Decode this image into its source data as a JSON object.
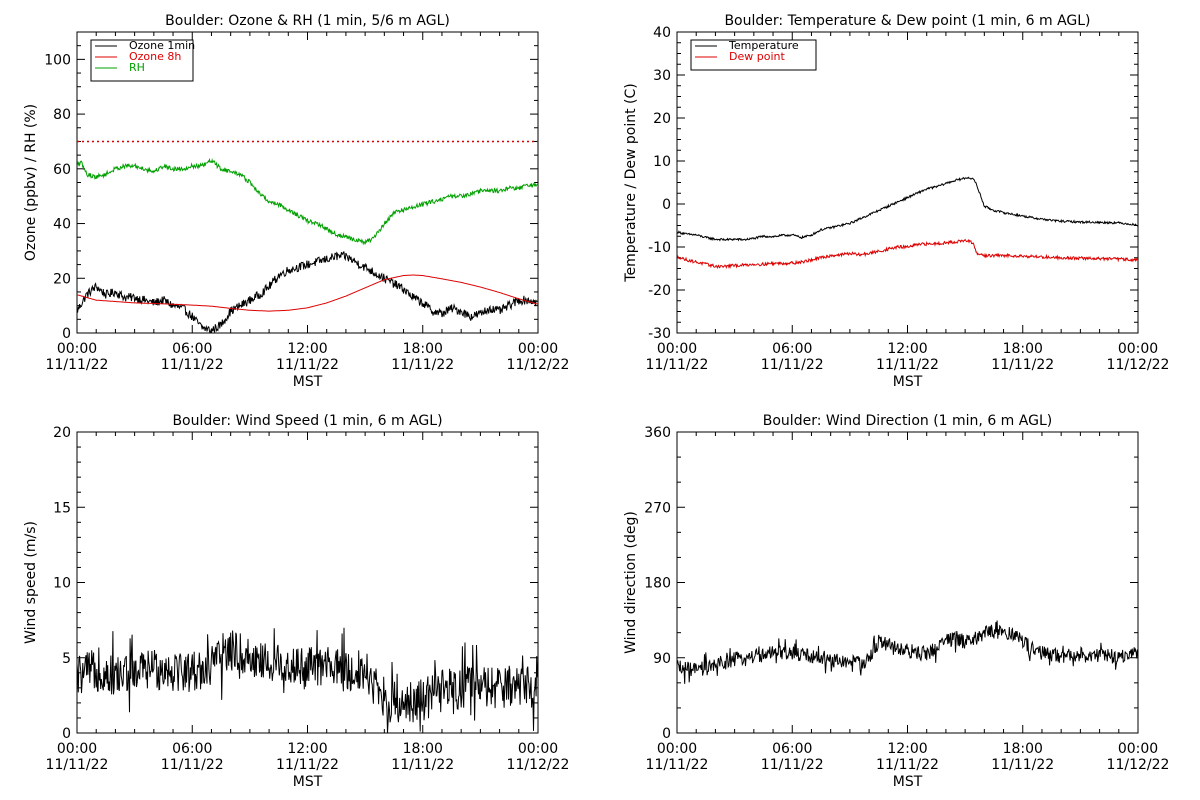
{
  "colors": {
    "black": "#000000",
    "red": "#dd0000",
    "green": "#00a000"
  },
  "xaxis": {
    "label": "MST",
    "ticks": [
      {
        "hour": 0,
        "time": "00:00",
        "date": "11/11/22"
      },
      {
        "hour": 6,
        "time": "06:00",
        "date": "11/11/22"
      },
      {
        "hour": 12,
        "time": "12:00",
        "date": "11/11/22"
      },
      {
        "hour": 18,
        "time": "18:00",
        "date": "11/11/22"
      },
      {
        "hour": 24,
        "time": "00:00",
        "date": "11/12/22"
      }
    ]
  },
  "chart_data": [
    {
      "type": "line",
      "title": "Boulder: Ozone & RH (1 min, 5/6 m AGL)",
      "ylabel": "Ozone (ppbv) / RH (%)",
      "xlabel": "MST",
      "xlim": [
        0,
        24
      ],
      "ylim": [
        0,
        110
      ],
      "yticks": [
        0,
        20,
        40,
        60,
        80,
        100
      ],
      "legend": "top-left",
      "reference_line": {
        "y": 70,
        "style": "dotted",
        "color": "#dd0000"
      },
      "series": [
        {
          "name": "Ozone 1min",
          "color": "#000000",
          "noise": 1.6,
          "x": [
            0,
            0.5,
            1,
            1.5,
            2,
            2.5,
            3,
            3.5,
            4,
            4.5,
            5,
            5.5,
            6,
            6.5,
            7,
            7.5,
            8,
            8.5,
            9,
            9.5,
            10,
            10.5,
            11,
            11.5,
            12,
            12.5,
            13,
            13.5,
            14,
            14.5,
            15,
            15.5,
            16,
            16.5,
            17,
            17.5,
            18,
            18.5,
            19,
            19.5,
            20,
            20.5,
            21,
            21.5,
            22,
            22.5,
            23,
            23.5,
            24
          ],
          "y": [
            8,
            14,
            17,
            14,
            15,
            13,
            13,
            12,
            11,
            12,
            10,
            9,
            6,
            2,
            1,
            3,
            8,
            10,
            12,
            14,
            17,
            21,
            23,
            24,
            25,
            26,
            27,
            28,
            28,
            26,
            24,
            22,
            20,
            18,
            16,
            13,
            11,
            8,
            7,
            9,
            8,
            6,
            7,
            9,
            8,
            10,
            12,
            12,
            11
          ]
        },
        {
          "name": "Ozone 8h",
          "color": "#dd0000",
          "noise": 0,
          "x": [
            0,
            0.5,
            1,
            2,
            3,
            4,
            5,
            6,
            7,
            8,
            9,
            10,
            11,
            12,
            13,
            14,
            15,
            16,
            17,
            17.5,
            18,
            19,
            20,
            21,
            22,
            23,
            24
          ],
          "y": [
            14,
            13,
            12,
            11.5,
            11,
            10.8,
            10.5,
            10.2,
            9.8,
            9,
            8.3,
            8,
            8.3,
            9.2,
            11,
            13.5,
            16.5,
            19.5,
            21,
            21.2,
            21,
            19.8,
            18.5,
            16.8,
            14.8,
            12.5,
            10.5
          ]
        },
        {
          "name": "RH",
          "color": "#00a000",
          "noise": 0.8,
          "x": [
            0,
            0.25,
            0.5,
            1,
            1.5,
            2,
            2.5,
            3,
            3.5,
            4,
            4.5,
            5,
            5.5,
            6,
            6.5,
            7,
            7.5,
            8,
            8.5,
            9,
            9.5,
            10,
            10.5,
            11,
            11.5,
            12,
            12.5,
            13,
            13.5,
            14,
            14.5,
            15,
            15.5,
            16,
            16.5,
            17,
            17.5,
            18,
            18.5,
            19,
            19.5,
            20,
            20.5,
            21,
            21.5,
            22,
            22.5,
            23,
            23.5,
            24
          ],
          "y": [
            62,
            62,
            58,
            57,
            58,
            60,
            61,
            61,
            60,
            59,
            61,
            60,
            60,
            61,
            61,
            63,
            60,
            59,
            58,
            55,
            51,
            48,
            47,
            45,
            43,
            41,
            40,
            38,
            36,
            35,
            34,
            33,
            35,
            40,
            44,
            45,
            46,
            47,
            48,
            49,
            50,
            50,
            51,
            52,
            52,
            52,
            53,
            53,
            54,
            54
          ]
        }
      ]
    },
    {
      "type": "line",
      "title": "Boulder: Temperature & Dew point (1 min, 6 m AGL)",
      "ylabel": "Temperature / Dew point (C)",
      "xlabel": "MST",
      "xlim": [
        0,
        24
      ],
      "ylim": [
        -30,
        40
      ],
      "yticks": [
        -30,
        -20,
        -10,
        0,
        10,
        20,
        30,
        40
      ],
      "legend": "top-left",
      "series": [
        {
          "name": "Temperature",
          "color": "#000000",
          "noise": 0.25,
          "x": [
            0,
            0.5,
            1,
            1.5,
            2,
            2.5,
            3,
            3.5,
            4,
            4.5,
            5,
            5.5,
            6,
            6.5,
            7,
            7.5,
            8,
            8.5,
            9,
            9.5,
            10,
            10.5,
            11,
            11.5,
            12,
            12.5,
            13,
            13.5,
            14,
            14.5,
            15,
            15.2,
            15.5,
            15.8,
            16,
            16.5,
            17,
            17.5,
            18,
            18.5,
            19,
            19.5,
            20,
            20.5,
            21,
            21.5,
            22,
            22.5,
            23,
            23.5,
            24
          ],
          "y": [
            -6.5,
            -7,
            -7.2,
            -7.8,
            -8.2,
            -8.3,
            -8.2,
            -8.3,
            -8,
            -7.5,
            -7.6,
            -7.3,
            -7.2,
            -7.8,
            -7.2,
            -6,
            -5.5,
            -5,
            -4.5,
            -3.5,
            -2.5,
            -1.5,
            -0.5,
            0.5,
            1.5,
            2.5,
            3.5,
            4,
            4.8,
            5.5,
            6,
            6.2,
            5.5,
            2,
            -0.5,
            -1.5,
            -2,
            -2.4,
            -2.8,
            -3.2,
            -3.5,
            -3.8,
            -4,
            -4.1,
            -4.2,
            -4.2,
            -4.3,
            -4.3,
            -4.4,
            -4.6,
            -5
          ]
        },
        {
          "name": "Dew point",
          "color": "#dd0000",
          "noise": 0.35,
          "x": [
            0,
            0.5,
            1,
            1.5,
            2,
            2.5,
            3,
            3.5,
            4,
            4.5,
            5,
            5.5,
            6,
            6.5,
            7,
            7.5,
            8,
            8.5,
            9,
            9.5,
            10,
            10.5,
            11,
            11.5,
            12,
            12.5,
            13,
            13.5,
            14,
            14.5,
            15,
            15.4,
            15.6,
            16,
            16.5,
            17,
            17.5,
            18,
            18.5,
            19,
            19.5,
            20,
            21,
            22,
            23,
            24
          ],
          "y": [
            -12.2,
            -13,
            -13.5,
            -14,
            -14.5,
            -14.5,
            -14.3,
            -14.2,
            -14,
            -14,
            -13.8,
            -13.8,
            -13.7,
            -13.5,
            -13,
            -12.5,
            -12,
            -11.8,
            -11.5,
            -11.8,
            -11.5,
            -11,
            -10.5,
            -10,
            -10,
            -9.5,
            -9.3,
            -9.2,
            -9,
            -8.8,
            -8.5,
            -9,
            -11.5,
            -12,
            -12,
            -12,
            -12,
            -12.1,
            -12.2,
            -12.3,
            -12.4,
            -12.5,
            -12.6,
            -12.7,
            -12.8,
            -13
          ]
        }
      ]
    },
    {
      "type": "line",
      "title": "Boulder: Wind Speed (1 min, 6 m AGL)",
      "ylabel": "Wind speed (m/s)",
      "xlabel": "MST",
      "xlim": [
        0,
        24
      ],
      "ylim": [
        0,
        20
      ],
      "yticks": [
        0,
        5,
        10,
        15,
        20
      ],
      "series": [
        {
          "name": "",
          "color": "#000000",
          "noise": 1.4,
          "spiky": true,
          "x": [
            0,
            1,
            2,
            3,
            4,
            5,
            6,
            7,
            8,
            9,
            10,
            11,
            12,
            13,
            14,
            15,
            15.5,
            16,
            17,
            18,
            19,
            20,
            21,
            22,
            23,
            24
          ],
          "y": [
            3.8,
            4.2,
            3.8,
            4,
            4.3,
            4.2,
            4.1,
            4.5,
            5.5,
            5,
            4.6,
            4.5,
            4.3,
            4.5,
            4,
            4.2,
            3.2,
            2,
            2.1,
            2.2,
            2.8,
            3,
            3.1,
            3,
            3.2,
            3
          ]
        }
      ]
    },
    {
      "type": "line",
      "title": "Boulder: Wind Direction (1 min, 6 m AGL)",
      "ylabel": "Wind direction (deg)",
      "xlabel": "MST",
      "xlim": [
        0,
        24
      ],
      "ylim": [
        0,
        360
      ],
      "yticks": [
        0,
        90,
        180,
        270,
        360
      ],
      "series": [
        {
          "name": "",
          "color": "#000000",
          "noise": 9,
          "spiky": true,
          "x": [
            0,
            1,
            2,
            3,
            4,
            5,
            6,
            7,
            8,
            9,
            10,
            10.5,
            11,
            11.5,
            12,
            12.5,
            13,
            13.5,
            14,
            14.5,
            15,
            15.5,
            16,
            16.5,
            17,
            17.5,
            18,
            18.5,
            19,
            20,
            21,
            22,
            23,
            24
          ],
          "y": [
            78,
            75,
            80,
            88,
            92,
            95,
            95,
            92,
            88,
            84,
            86,
            110,
            105,
            100,
            98,
            95,
            96,
            100,
            112,
            115,
            108,
            112,
            120,
            122,
            120,
            118,
            110,
            100,
            95,
            92,
            94,
            92,
            92,
            95
          ]
        }
      ]
    }
  ]
}
